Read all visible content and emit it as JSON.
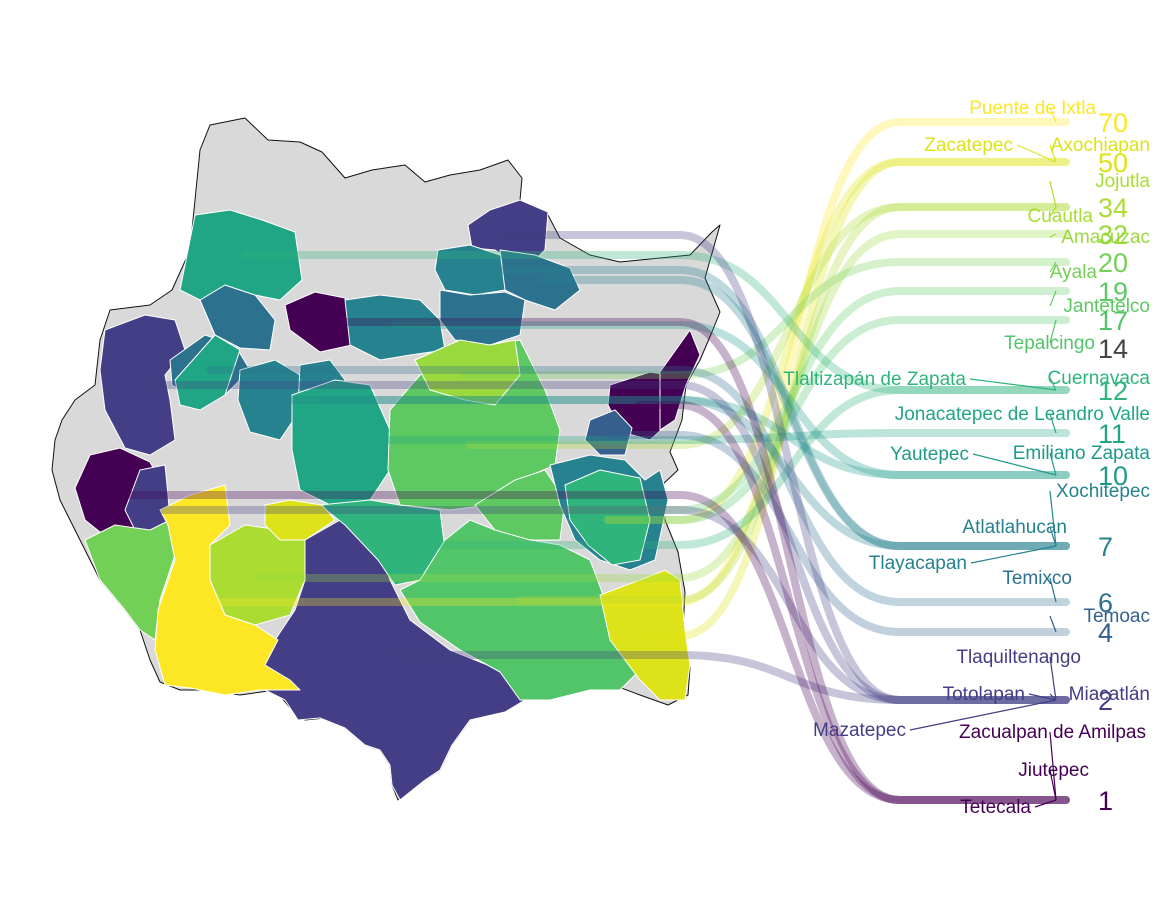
{
  "palette": {
    "low": "#440154",
    "high": "#fde725",
    "no_data": "#d9d9d9",
    "border": "#ffffff",
    "outline": "#111111"
  },
  "chart_data": {
    "type": "choropleth-bump",
    "title": "",
    "value_ticks": [
      70,
      50,
      34,
      32,
      20,
      19,
      17,
      14,
      12,
      11,
      10,
      7,
      6,
      4,
      2,
      1
    ],
    "municipalities": [
      {
        "name": "Puente de Ixtla",
        "value": 70,
        "color": "#fde725"
      },
      {
        "name": "Zacatepec",
        "value": 50,
        "color": "#dde318"
      },
      {
        "name": "Axochiapan",
        "value": 50,
        "color": "#dde318"
      },
      {
        "name": "Jojutla",
        "value": 34,
        "color": "#aadc32"
      },
      {
        "name": "Cuautla",
        "value": 34,
        "color": "#aadc32"
      },
      {
        "name": "Amacuzac",
        "value": 32,
        "color": "#9ad93e"
      },
      {
        "name": "Ayala",
        "value": 20,
        "color": "#73d056"
      },
      {
        "name": "Jantetelco",
        "value": 19,
        "color": "#5ec962"
      },
      {
        "name": "Tepalcingo",
        "value": 17,
        "color": "#52c569"
      },
      {
        "name": "Tlaltizapán de Zapata",
        "value": 12,
        "color": "#2fb47c"
      },
      {
        "name": "Cuernavaca",
        "value": 12,
        "color": "#2fb47c"
      },
      {
        "name": "Jonacatepec de Leandro Valle",
        "value": 11,
        "color": "#21a685"
      },
      {
        "name": "Yautepec",
        "value": 10,
        "color": "#1f9a8a"
      },
      {
        "name": "Emiliano Zapata",
        "value": 10,
        "color": "#1f9a8a"
      },
      {
        "name": "Xochitepec",
        "value": 7,
        "color": "#26828e"
      },
      {
        "name": "Atlatlahucan",
        "value": 7,
        "color": "#26828e"
      },
      {
        "name": "Tlayacapan",
        "value": 7,
        "color": "#26828e"
      },
      {
        "name": "Temixco",
        "value": 6,
        "color": "#2c728e"
      },
      {
        "name": "Temoac",
        "value": 4,
        "color": "#355f8d"
      },
      {
        "name": "Tlaquiltenango",
        "value": 2,
        "color": "#433e85"
      },
      {
        "name": "Totolapan",
        "value": 2,
        "color": "#433e85"
      },
      {
        "name": "Miacatlán",
        "value": 2,
        "color": "#433e85"
      },
      {
        "name": "Mazatepec",
        "value": 2,
        "color": "#433e85"
      },
      {
        "name": "Zacualpan de Amilpas",
        "value": 1,
        "color": "#440154"
      },
      {
        "name": "Jiutepec",
        "value": 1,
        "color": "#440154"
      },
      {
        "name": "Tetecala",
        "value": 1,
        "color": "#440154"
      }
    ]
  }
}
